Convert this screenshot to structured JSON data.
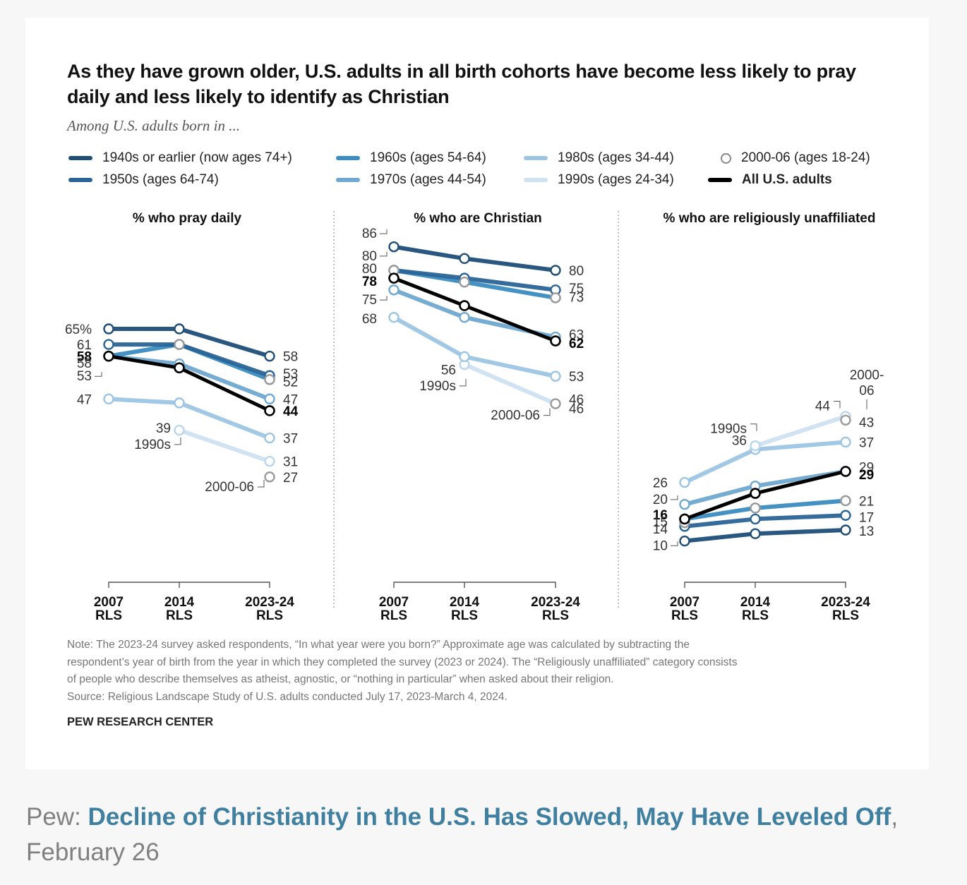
{
  "chart_data": {
    "type": "line",
    "title": "As they have grown older, U.S. adults in all birth cohorts have become less likely to pray daily and less likely to identify as Christian",
    "subtitle": "Among U.S. adults born in ...",
    "x": [
      "2007 RLS",
      "2014 RLS",
      "2023-24 RLS"
    ],
    "x_ticks": [
      {
        "line1": "2007",
        "line2": "RLS"
      },
      {
        "line1": "2014",
        "line2": "RLS"
      },
      {
        "line1": "2023-24",
        "line2": "RLS"
      }
    ],
    "legend": [
      {
        "key": "c1940",
        "label": "1940s or earlier (now ages 74+)",
        "color": "#1f4e79",
        "marker": "line"
      },
      {
        "key": "c1950",
        "label": "1950s (ages 64-74)",
        "color": "#2a6496",
        "marker": "line"
      },
      {
        "key": "c1960",
        "label": "1960s (ages 54-64)",
        "color": "#3a8cc1",
        "marker": "line"
      },
      {
        "key": "c1970",
        "label": "1970s (ages 44-54)",
        "color": "#6fa8d0",
        "marker": "line"
      },
      {
        "key": "c1980",
        "label": "1980s (ages 34-44)",
        "color": "#9cc5e3",
        "marker": "line"
      },
      {
        "key": "c1990",
        "label": "1990s (ages 24-34)",
        "color": "#cfe2f1",
        "marker": "line"
      },
      {
        "key": "c2000",
        "label": "2000-06 (ages 18-24)",
        "color": "#9b9b9b",
        "marker": "circle"
      },
      {
        "key": "all",
        "label": "All U.S. adults",
        "color": "#000000",
        "marker": "line",
        "bold": true
      }
    ],
    "legend_placement": "top",
    "panels": [
      {
        "key": "pray",
        "title": "% who pray daily",
        "ylim": [
          20,
          68
        ],
        "series": [
          {
            "key": "c1990",
            "values": [
              null,
              39,
              31
            ]
          },
          {
            "key": "c2000",
            "values": [
              null,
              null,
              27
            ]
          },
          {
            "key": "c1980",
            "values": [
              47,
              46,
              37
            ]
          },
          {
            "key": "c1970",
            "values": [
              58,
              56,
              47
            ]
          },
          {
            "key": "c1960",
            "values": [
              58,
              61,
              52
            ]
          },
          {
            "key": "c1950",
            "values": [
              61,
              61,
              53
            ]
          },
          {
            "key": "c1940",
            "values": [
              65,
              65,
              58
            ]
          },
          {
            "key": "all",
            "values": [
              58,
              55,
              44
            ]
          }
        ],
        "series_2000_extra": {
          "key": "c2000",
          "values": [
            null,
            61,
            52
          ]
        },
        "labels_left": [
          {
            "text": "65%",
            "value": 65,
            "bold": false
          },
          {
            "text": "61",
            "value": 61,
            "bold": false
          },
          {
            "text": "58",
            "value": 58,
            "bold": true
          },
          {
            "text": "58",
            "value": 56.3,
            "bold": false
          },
          {
            "text": "53",
            "value": 53,
            "bold": false,
            "leader": true
          },
          {
            "text": "47",
            "value": 47,
            "bold": false
          }
        ],
        "labels_right": [
          {
            "text": "58",
            "value": 58,
            "bold": false
          },
          {
            "text": "53",
            "value": 53.6,
            "bold": false
          },
          {
            "text": "52",
            "value": 51.5,
            "bold": false
          },
          {
            "text": "47",
            "value": 47,
            "bold": false
          },
          {
            "text": "44",
            "value": 44,
            "bold": true
          },
          {
            "text": "37",
            "value": 37,
            "bold": false
          },
          {
            "text": "31",
            "value": 31,
            "bold": false
          },
          {
            "text": "27",
            "value": 27,
            "bold": false
          }
        ],
        "annotations": [
          {
            "text": "39",
            "anchor": "mid",
            "value": 39.6
          },
          {
            "text": "1990s",
            "anchor": "mid",
            "value": 35.5,
            "leader": "up-right"
          },
          {
            "text": "2000-06",
            "anchor": "end",
            "value": 24.6,
            "leader": "up-right"
          }
        ]
      },
      {
        "key": "christian",
        "title": "% who are Christian",
        "ylim": [
          40,
          90
        ],
        "series": [
          {
            "key": "c1990",
            "values": [
              null,
              56,
              46
            ]
          },
          {
            "key": "c1980",
            "values": [
              68,
              58,
              53
            ]
          },
          {
            "key": "c1970",
            "values": [
              75,
              68,
              63
            ]
          },
          {
            "key": "c1960",
            "values": [
              80,
              77,
              73
            ]
          },
          {
            "key": "c1950",
            "values": [
              80,
              78,
              75
            ]
          },
          {
            "key": "c2000",
            "values": [
              80,
              77,
              73
            ]
          },
          {
            "key": "c1940",
            "values": [
              86,
              83,
              80
            ]
          },
          {
            "key": "all",
            "values": [
              78,
              71,
              62
            ]
          }
        ],
        "series_2000_extra": {
          "key": "c2000",
          "values": [
            null,
            null,
            46
          ]
        },
        "labels_left": [
          {
            "text": "86",
            "value": 89.5,
            "bold": false,
            "leader": true
          },
          {
            "text": "80",
            "value": 83.8,
            "bold": false,
            "leader": true
          },
          {
            "text": "80",
            "value": 80.5,
            "bold": false
          },
          {
            "text": "78",
            "value": 77.3,
            "bold": true
          },
          {
            "text": "75",
            "value": 72.6,
            "bold": false,
            "leader": true
          },
          {
            "text": "68",
            "value": 67.8,
            "bold": false
          }
        ],
        "labels_right": [
          {
            "text": "80",
            "value": 80,
            "bold": false
          },
          {
            "text": "75",
            "value": 75.5,
            "bold": false
          },
          {
            "text": "73",
            "value": 73.3,
            "bold": false
          },
          {
            "text": "63",
            "value": 63.7,
            "bold": false
          },
          {
            "text": "62",
            "value": 61.5,
            "bold": true
          },
          {
            "text": "53",
            "value": 53,
            "bold": false
          },
          {
            "text": "46",
            "value": 47.2,
            "bold": false
          },
          {
            "text": "46",
            "value": 44.8,
            "bold": false
          }
        ],
        "annotations": [
          {
            "text": "56",
            "anchor": "mid",
            "value": 54.7
          },
          {
            "text": "1990s",
            "anchor": "mid",
            "value": 50.7,
            "leader": "up-right"
          },
          {
            "text": "2000-06",
            "anchor": "end",
            "value": 43.2,
            "leader": "up-right"
          }
        ]
      },
      {
        "key": "unaffiliated",
        "title": "% who are religiously unaffiliated",
        "ylim": [
          0,
          50
        ],
        "series": [
          {
            "key": "c1940",
            "values": [
              10,
              12,
              13
            ]
          },
          {
            "key": "c1950",
            "values": [
              14,
              16,
              17
            ]
          },
          {
            "key": "c1960",
            "values": [
              16,
              19,
              21
            ]
          },
          {
            "key": "c2000",
            "values": [
              15,
              19,
              21
            ]
          },
          {
            "key": "c1970",
            "values": [
              20,
              25,
              29
            ]
          },
          {
            "key": "c1980",
            "values": [
              26,
              35,
              37
            ]
          },
          {
            "key": "c1990",
            "values": [
              null,
              36,
              44
            ]
          },
          {
            "key": "all",
            "values": [
              16,
              23,
              29
            ]
          }
        ],
        "series_2000_extra": {
          "key": "c2000",
          "values": [
            null,
            null,
            43
          ]
        },
        "labels_left": [
          {
            "text": "26",
            "value": 26,
            "bold": false
          },
          {
            "text": "20",
            "value": 21.5,
            "bold": false,
            "leader": true
          },
          {
            "text": "16",
            "value": 17.2,
            "bold": true
          },
          {
            "text": "15",
            "value": 15.3,
            "bold": false
          },
          {
            "text": "14",
            "value": 13.4,
            "bold": false
          },
          {
            "text": "10",
            "value": 8.9,
            "bold": false,
            "leader": true
          }
        ],
        "labels_right": [
          {
            "text": "43",
            "value": 42.5,
            "bold": false
          },
          {
            "text": "37",
            "value": 37,
            "bold": false
          },
          {
            "text": "29",
            "value": 30.2,
            "bold": false
          },
          {
            "text": "29",
            "value": 28.2,
            "bold": true
          },
          {
            "text": "21",
            "value": 21,
            "bold": false
          },
          {
            "text": "17",
            "value": 16.6,
            "bold": false
          },
          {
            "text": "13",
            "value": 12.8,
            "bold": false
          }
        ],
        "annotations": [
          {
            "text": "44",
            "anchor": "end",
            "value": 47.0,
            "leader": "down-right"
          },
          {
            "text": "1990s",
            "anchor": "mid",
            "value": 40.8,
            "leader": "down-right"
          },
          {
            "text": "36",
            "anchor": "mid",
            "value": 37.6
          },
          {
            "text": "2000-",
            "anchor": "endlabel",
            "value": 55.5
          },
          {
            "text": "06",
            "anchor": "endlabel",
            "value": 51.2,
            "leader": "vertical"
          }
        ]
      }
    ]
  },
  "notes": {
    "lines": [
      "Note: The 2023-24 survey asked respondents, “In what year were you born?” Approximate age was calculated by subtracting the",
      "respondent’s year of birth from the year in which they completed the survey (2023 or 2024). The “Religiously unaffiliated” category consists",
      "of people who describe themselves as atheist, agnostic, or “nothing in particular” when asked about their religion.",
      "Source: Religious Landscape Study of U.S. adults conducted July 17, 2023-March 4, 2024."
    ],
    "brand": "PEW RESEARCH CENTER"
  },
  "caption": {
    "prefix": "Pew: ",
    "link_text": "Decline of Christianity in the U.S. Has Slowed, May Have Leveled Off",
    "suffix": ",",
    "date": "February 26",
    "link_color": "#3f7fa0"
  }
}
